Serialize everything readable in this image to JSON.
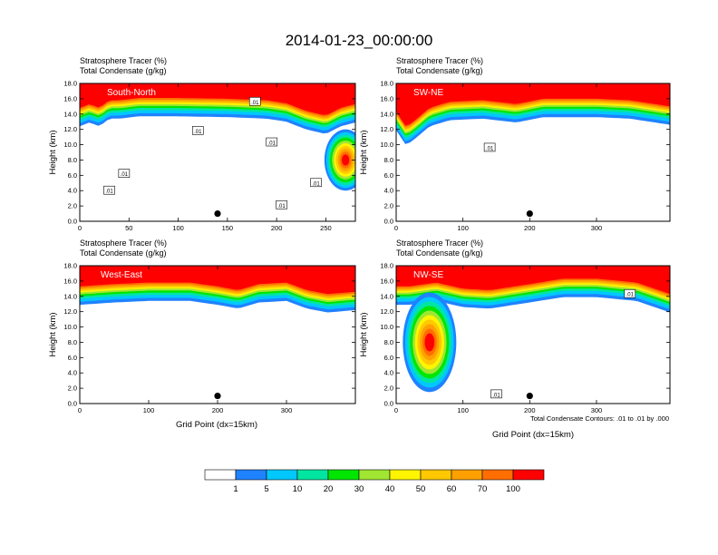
{
  "figure": {
    "title": "2014-01-23_00:00:00",
    "subtitle_line1": "Stratosphere Tracer   (%)",
    "subtitle_line2": "Total Condensate   (g/kg)",
    "contour_note": "Total Condensate Contours: .01 to .01 by .000",
    "colors": {
      "levels": [
        "#ffffff",
        "#1f82ff",
        "#00c8ff",
        "#00e6a0",
        "#00e600",
        "#a0e632",
        "#fff500",
        "#ffc800",
        "#ffa000",
        "#ff6e00",
        "#ff0000"
      ],
      "contour": "#000000"
    }
  },
  "colorbar": {
    "labels": [
      "1",
      "5",
      "10",
      "20",
      "30",
      "40",
      "50",
      "60",
      "70",
      "100"
    ]
  },
  "chart_data": [
    {
      "type": "heatmap",
      "panel": "South-North",
      "title": "Stratosphere Tracer (%) / Total Condensate (g/kg)",
      "xlabel": "",
      "ylabel": "Height (km)",
      "xlim": [
        0,
        280
      ],
      "ylim": [
        0,
        18
      ],
      "x_ticks": [
        "0",
        "50",
        "100",
        "150",
        "200",
        "250"
      ],
      "y_ticks": [
        "0.0",
        "2.0",
        "4.0",
        "6.0",
        "8.0",
        "10.0",
        "12.0",
        "14.0",
        "16.0",
        "18.0"
      ],
      "tropopause_km": [
        [
          0,
          15.0
        ],
        [
          10,
          15.5
        ],
        [
          20,
          15.0
        ],
        [
          30,
          16.0
        ],
        [
          40,
          16.0
        ],
        [
          60,
          16.3
        ],
        [
          100,
          16.3
        ],
        [
          150,
          16.2
        ],
        [
          190,
          16.0
        ],
        [
          210,
          15.6
        ],
        [
          230,
          14.6
        ],
        [
          250,
          14.0
        ],
        [
          265,
          15.0
        ],
        [
          280,
          15.5
        ]
      ],
      "intrusion": {
        "x": [
          237,
          280
        ],
        "z_range_km": [
          4.0,
          12.0
        ],
        "peak_x": 270,
        "peak_z_km": 8.0,
        "max_percent": 100
      },
      "site_marker": {
        "x": 140,
        "z_km": 1.0
      },
      "contour_labels": [
        {
          "text": ".01",
          "x": 178,
          "z_km": 15.6
        },
        {
          "text": ".01",
          "x": 120,
          "z_km": 11.8
        },
        {
          "text": ".01",
          "x": 195,
          "z_km": 10.3
        },
        {
          "text": ".01",
          "x": 45,
          "z_km": 6.2
        },
        {
          "text": ".01",
          "x": 30,
          "z_km": 4.0
        },
        {
          "text": ".01",
          "x": 240,
          "z_km": 5.0
        },
        {
          "text": ".01",
          "x": 205,
          "z_km": 2.1
        }
      ]
    },
    {
      "type": "heatmap",
      "panel": "SW-NE",
      "title": "Stratosphere Tracer (%) / Total Condensate (g/kg)",
      "xlabel": "",
      "ylabel": "Height (km)",
      "xlim": [
        0,
        410
      ],
      "ylim": [
        0,
        18
      ],
      "x_ticks": [
        "0",
        "100",
        "200",
        "300"
      ],
      "y_ticks": [
        "0.0",
        "2.0",
        "4.0",
        "6.0",
        "8.0",
        "10.0",
        "12.0",
        "14.0",
        "16.0",
        "18.0"
      ],
      "tropopause_km": [
        [
          0,
          14.5
        ],
        [
          15,
          12.5
        ],
        [
          30,
          13.5
        ],
        [
          50,
          15.0
        ],
        [
          80,
          15.8
        ],
        [
          130,
          16.0
        ],
        [
          180,
          15.5
        ],
        [
          220,
          16.2
        ],
        [
          300,
          16.2
        ],
        [
          350,
          16.0
        ],
        [
          410,
          15.2
        ]
      ],
      "site_marker": {
        "x": 200,
        "z_km": 1.0
      },
      "contour_labels": [
        {
          "text": ".01",
          "x": 140,
          "z_km": 9.6
        }
      ]
    },
    {
      "type": "heatmap",
      "panel": "West-East",
      "title": "Stratosphere Tracer (%) / Total Condensate (g/kg)",
      "xlabel": "Grid Point (dx=15km)",
      "ylabel": "Height (km)",
      "xlim": [
        0,
        400
      ],
      "ylim": [
        0,
        18
      ],
      "x_ticks": [
        "0",
        "100",
        "200",
        "300"
      ],
      "y_ticks": [
        "0.0",
        "2.0",
        "4.0",
        "6.0",
        "8.0",
        "10.0",
        "12.0",
        "14.0",
        "16.0",
        "18.0"
      ],
      "tropopause_km": [
        [
          0,
          15.5
        ],
        [
          50,
          15.8
        ],
        [
          100,
          16.0
        ],
        [
          160,
          16.0
        ],
        [
          200,
          15.5
        ],
        [
          230,
          15.0
        ],
        [
          260,
          15.8
        ],
        [
          300,
          16.0
        ],
        [
          330,
          15.0
        ],
        [
          360,
          14.5
        ],
        [
          400,
          14.8
        ]
      ],
      "site_marker": {
        "x": 200,
        "z_km": 1.0
      },
      "contour_labels": []
    },
    {
      "type": "heatmap",
      "panel": "NW-SE",
      "title": "Stratosphere Tracer (%) / Total Condensate (g/kg)",
      "xlabel": "Grid Point (dx=15km)",
      "ylabel": "Height (km)",
      "xlim": [
        0,
        410
      ],
      "ylim": [
        0,
        18
      ],
      "x_ticks": [
        "0",
        "100",
        "200",
        "300"
      ],
      "y_ticks": [
        "0.0",
        "2.0",
        "4.0",
        "6.0",
        "8.0",
        "10.0",
        "12.0",
        "14.0",
        "16.0",
        "18.0"
      ],
      "tropopause_km": [
        [
          0,
          15.5
        ],
        [
          20,
          15.5
        ],
        [
          60,
          16.0
        ],
        [
          100,
          15.2
        ],
        [
          140,
          15.0
        ],
        [
          200,
          15.8
        ],
        [
          250,
          16.5
        ],
        [
          300,
          16.5
        ],
        [
          360,
          16.0
        ],
        [
          410,
          14.5
        ]
      ],
      "intrusion": {
        "x": [
          20,
          100
        ],
        "z_range_km": [
          3.0,
          16.0
        ],
        "peak_x": 50,
        "peak_z_km": 8.0,
        "max_percent": 100
      },
      "site_marker": {
        "x": 200,
        "z_km": 1.0
      },
      "contour_labels": [
        {
          "text": ".01",
          "x": 350,
          "z_km": 14.3
        },
        {
          "text": ".01",
          "x": 150,
          "z_km": 1.2
        }
      ]
    }
  ]
}
